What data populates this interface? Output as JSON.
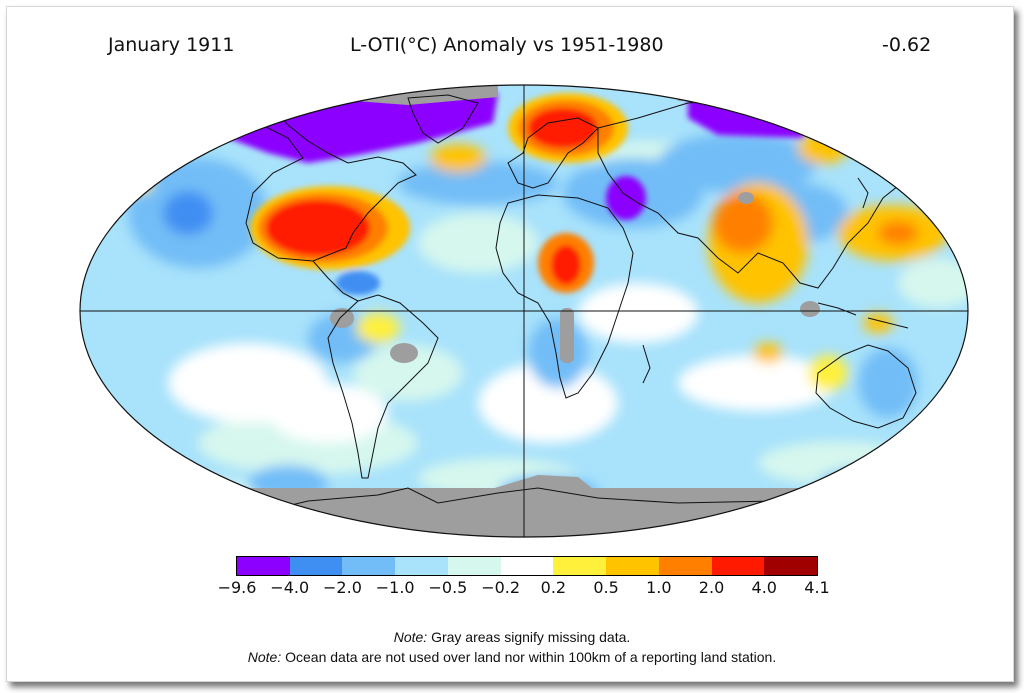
{
  "header": {
    "date": "January 1911",
    "title": "L-OTI(°C) Anomaly vs 1951-1980",
    "mean_anomaly": "-0.62"
  },
  "legend": {
    "tick_labels": [
      "−9.6",
      "−4.0",
      "−2.0",
      "−1.0",
      "−0.5",
      "−0.2",
      "0.2",
      "0.5",
      "1.0",
      "2.0",
      "4.0",
      "4.1"
    ],
    "colors": [
      "#8b00ff",
      "#3f8ef2",
      "#72bdf7",
      "#a8e2fb",
      "#d6f7ee",
      "#ffffff",
      "#fff03c",
      "#ffc300",
      "#ff8000",
      "#ff1a00",
      "#a10000"
    ],
    "missing_color": "#9e9e9e"
  },
  "notes": [
    {
      "label": "Note:",
      "text": " Gray areas signify missing data."
    },
    {
      "label": "Note:",
      "text": " Ocean data are not used over land nor within 100km of a reporting land station."
    }
  ]
}
